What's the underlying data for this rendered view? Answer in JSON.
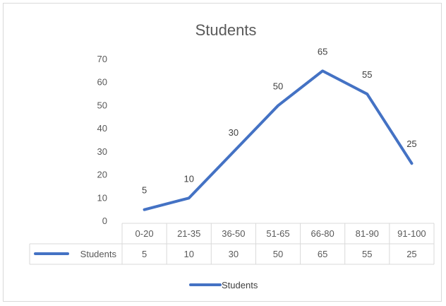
{
  "chart_data": {
    "type": "line",
    "title": "Students",
    "categories": [
      "0-20",
      "21-35",
      "36-50",
      "51-65",
      "66-80",
      "81-90",
      "91-100"
    ],
    "series": [
      {
        "name": "Students",
        "values": [
          5,
          10,
          30,
          50,
          65,
          55,
          25
        ]
      }
    ],
    "yticks": [
      "0",
      "10",
      "20",
      "30",
      "40",
      "50",
      "60",
      "70"
    ],
    "ylim": [
      0,
      70
    ],
    "grid": false,
    "data_table": true,
    "legend_position": "bottom",
    "line_color": "#4472C4"
  }
}
